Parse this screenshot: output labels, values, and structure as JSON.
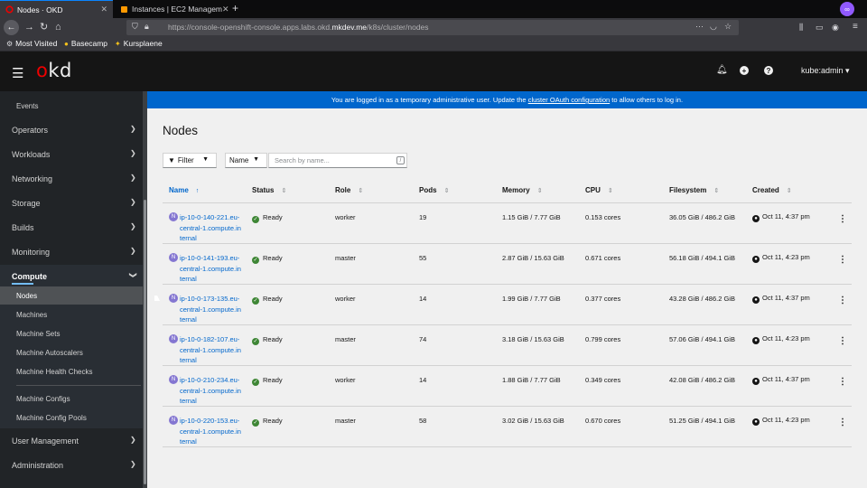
{
  "browser": {
    "tabs": [
      {
        "title": "Nodes · OKD",
        "active": true
      },
      {
        "title": "Instances | EC2 Managem",
        "active": false
      }
    ],
    "url_prefix": "https://console-openshift-console.apps.labs.okd.",
    "url_domain": "mkdev.me",
    "url_path": "/k8s/cluster/nodes",
    "bookmarks": [
      "Most Visited",
      "Basecamp",
      "Kursplaene"
    ]
  },
  "masthead": {
    "logo_o": "o",
    "logo_rest": "kd",
    "user": "kube:admin"
  },
  "sidebar": {
    "partial_top": "Events",
    "sections": [
      "Operators",
      "Workloads",
      "Networking",
      "Storage",
      "Builds",
      "Monitoring"
    ],
    "compute_label": "Compute",
    "compute_items": [
      "Nodes",
      "Machines",
      "Machine Sets",
      "Machine Autoscalers",
      "Machine Health Checks"
    ],
    "compute_items_2": [
      "Machine Configs",
      "Machine Config Pools"
    ],
    "bottom_sections": [
      "User Management",
      "Administration"
    ]
  },
  "banner": {
    "text_before": "You are logged in as a temporary administrative user. Update the ",
    "link": "cluster OAuth configuration",
    "text_after": " to allow others to log in."
  },
  "page": {
    "title": "Nodes",
    "filter_label": "Filter",
    "name_select": "Name",
    "search_placeholder": "Search by name...",
    "search_shortcut": "/"
  },
  "table": {
    "columns": [
      "Name",
      "Status",
      "Role",
      "Pods",
      "Memory",
      "CPU",
      "Filesystem",
      "Created"
    ],
    "rows": [
      {
        "badge": "N",
        "name": "ip-10-0-140-221.eu-central-1.compute.internal",
        "status": "Ready",
        "role": "worker",
        "pods": "19",
        "memory": "1.15 GiB / 7.77 GiB",
        "cpu": "0.153 cores",
        "filesystem": "36.05 GiB / 486.2 GiB",
        "created": "Oct 11, 4:37 pm"
      },
      {
        "badge": "N",
        "name": "ip-10-0-141-193.eu-central-1.compute.internal",
        "status": "Ready",
        "role": "master",
        "pods": "55",
        "memory": "2.87 GiB / 15.63 GiB",
        "cpu": "0.671 cores",
        "filesystem": "56.18 GiB / 494.1 GiB",
        "created": "Oct 11, 4:23 pm"
      },
      {
        "badge": "N",
        "name": "ip-10-0-173-135.eu-central-1.compute.internal",
        "status": "Ready",
        "role": "worker",
        "pods": "14",
        "memory": "1.99 GiB / 7.77 GiB",
        "cpu": "0.377 cores",
        "filesystem": "43.28 GiB / 486.2 GiB",
        "created": "Oct 11, 4:37 pm"
      },
      {
        "badge": "N",
        "name": "ip-10-0-182-107.eu-central-1.compute.internal",
        "status": "Ready",
        "role": "master",
        "pods": "74",
        "memory": "3.18 GiB / 15.63 GiB",
        "cpu": "0.799 cores",
        "filesystem": "57.06 GiB / 494.1 GiB",
        "created": "Oct 11, 4:23 pm"
      },
      {
        "badge": "N",
        "name": "ip-10-0-210-234.eu-central-1.compute.internal",
        "status": "Ready",
        "role": "worker",
        "pods": "14",
        "memory": "1.88 GiB / 7.77 GiB",
        "cpu": "0.349 cores",
        "filesystem": "42.08 GiB / 486.2 GiB",
        "created": "Oct 11, 4:37 pm"
      },
      {
        "badge": "N",
        "name": "ip-10-0-220-153.eu-central-1.compute.internal",
        "status": "Ready",
        "role": "master",
        "pods": "58",
        "memory": "3.02 GiB / 15.63 GiB",
        "cpu": "0.670 cores",
        "filesystem": "51.25 GiB / 494.1 GiB",
        "created": "Oct 11, 4:23 pm"
      }
    ]
  }
}
